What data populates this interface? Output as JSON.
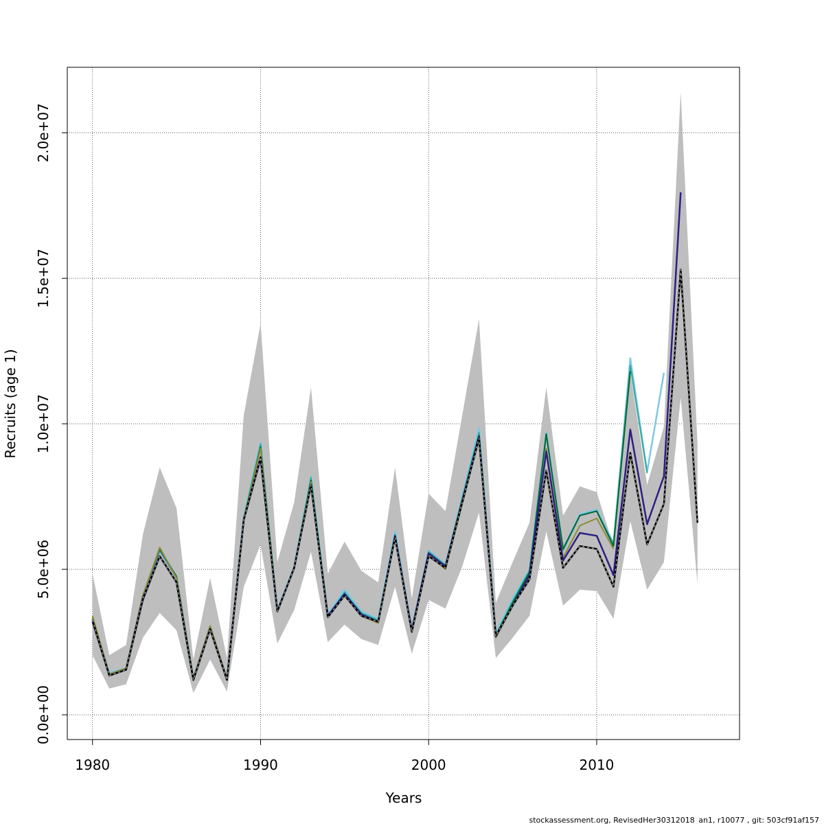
{
  "chart_data": {
    "type": "line",
    "title": "",
    "xlabel": "Years",
    "ylabel": "Recruits (age 1)",
    "xlim": [
      1978.5,
      2018.5
    ],
    "ylim": [
      -850000,
      22250000
    ],
    "grid": true,
    "xticks": [
      {
        "value": 1980,
        "label": "1980"
      },
      {
        "value": 1990,
        "label": "1990"
      },
      {
        "value": 2000,
        "label": "2000"
      },
      {
        "value": 2010,
        "label": "2010"
      }
    ],
    "yticks": [
      {
        "value": 0,
        "label": "0.0e+00"
      },
      {
        "value": 5000000,
        "label": "5.0e+06"
      },
      {
        "value": 10000000,
        "label": "1.0e+07"
      },
      {
        "value": 15000000,
        "label": "1.5e+07"
      },
      {
        "value": 20000000,
        "label": "2.0e+07"
      }
    ],
    "band": {
      "color": "#bebebe",
      "x": [
        1980,
        1981,
        1982,
        1983,
        1984,
        1985,
        1986,
        1987,
        1988,
        1989,
        1990,
        1991,
        1992,
        1993,
        1994,
        1995,
        1996,
        1997,
        1998,
        1999,
        2000,
        2001,
        2002,
        2003,
        2004,
        2005,
        2006,
        2007,
        2008,
        2009,
        2010,
        2011,
        2012,
        2013,
        2014,
        2015,
        2016
      ],
      "lower": [
        2050000,
        900000,
        1050000,
        2650000,
        3500000,
        2900000,
        750000,
        1900000,
        800000,
        4400000,
        5850000,
        2450000,
        3600000,
        5600000,
        2500000,
        3100000,
        2600000,
        2400000,
        4400000,
        2100000,
        3950000,
        3650000,
        5100000,
        6950000,
        1950000,
        2650000,
        3400000,
        6300000,
        3750000,
        4300000,
        4250000,
        3300000,
        6650000,
        4300000,
        5250000,
        10900000,
        4500000
      ],
      "upper": [
        4850000,
        2050000,
        2400000,
        6200000,
        8500000,
        7100000,
        1900000,
        4700000,
        1950000,
        10300000,
        13450000,
        5250000,
        7300000,
        11250000,
        4850000,
        5950000,
        4950000,
        4550000,
        8500000,
        4000000,
        7600000,
        7000000,
        10300000,
        13600000,
        3850000,
        5250000,
        6600000,
        11250000,
        6850000,
        7850000,
        7650000,
        5800000,
        11800000,
        7900000,
        9900000,
        21400000,
        9300000
      ]
    },
    "series": [
      {
        "color": "#2171b5",
        "width": 2,
        "x": [
          1980,
          1981,
          1982,
          1983,
          1984,
          1985,
          1986,
          1987,
          1988,
          1989,
          1990,
          1991,
          1992,
          1993,
          1994,
          1995,
          1996,
          1997,
          1998,
          1999,
          2000,
          2001,
          2002,
          2003,
          2004,
          2005,
          2006,
          2007,
          2008,
          2009,
          2010,
          2011,
          2012
        ],
        "values": [
          3250000,
          1400000,
          1600000,
          4050000,
          5650000,
          4700000,
          1250000,
          3000000,
          1250000,
          6750000,
          9300000,
          3600000,
          5050000,
          8150000,
          3400000,
          4250000,
          3500000,
          3250000,
          6200000,
          2900000,
          5650000,
          5150000,
          7450000,
          9750000,
          2750000,
          3900000,
          5000000,
          9650000,
          5700000,
          6850000,
          7000000,
          5800000,
          12100000
        ]
      },
      {
        "color": "#7ec8e3",
        "width": 2.5,
        "x": [
          1980,
          1981,
          1982,
          1983,
          1984,
          1985,
          1986,
          1987,
          1988,
          1989,
          1990,
          1991,
          1992,
          1993,
          1994,
          1995,
          1996,
          1997,
          1998,
          1999,
          2000,
          2001,
          2002,
          2003,
          2004,
          2005,
          2006,
          2007,
          2008,
          2009,
          2010,
          2011,
          2012,
          2013,
          2014
        ],
        "values": [
          3300000,
          1450000,
          1600000,
          4100000,
          5700000,
          4750000,
          1250000,
          3050000,
          1250000,
          6800000,
          9350000,
          3600000,
          5100000,
          8200000,
          3450000,
          4300000,
          3550000,
          3300000,
          6300000,
          2950000,
          5650000,
          5150000,
          7500000,
          9850000,
          2800000,
          4000000,
          5000000,
          9700000,
          5700000,
          6900000,
          7050000,
          5900000,
          12250000,
          8350000,
          11750000
        ]
      },
      {
        "color": "#35a89a",
        "width": 2,
        "x": [
          1980,
          1981,
          1982,
          1983,
          1984,
          1985,
          1986,
          1987,
          1988,
          1989,
          1990,
          1991,
          1992,
          1993,
          1994,
          1995,
          1996,
          1997,
          1998,
          1999,
          2000,
          2001,
          2002,
          2003,
          2004,
          2005,
          2006,
          2007,
          2008,
          2009,
          2010,
          2011,
          2012,
          2013
        ],
        "values": [
          3300000,
          1400000,
          1600000,
          4100000,
          5700000,
          4700000,
          1250000,
          3000000,
          1250000,
          6750000,
          9300000,
          3600000,
          5050000,
          8150000,
          3400000,
          4200000,
          3500000,
          3250000,
          6200000,
          2900000,
          5600000,
          5150000,
          7450000,
          9700000,
          2750000,
          3900000,
          4950000,
          9650000,
          5650000,
          6850000,
          7000000,
          5850000,
          12000000,
          8300000
        ]
      },
      {
        "color": "#006837",
        "width": 2,
        "x": [
          1980,
          1981,
          1982,
          1983,
          1984,
          1985,
          1986,
          1987,
          1988,
          1989,
          1990,
          1991,
          1992,
          1993,
          1994,
          1995,
          1996,
          1997,
          1998,
          1999,
          2000,
          2001,
          2002,
          2003,
          2004,
          2005,
          2006,
          2007,
          2008,
          2009,
          2010,
          2011,
          2012
        ],
        "values": [
          3350000,
          1400000,
          1600000,
          4100000,
          5700000,
          4750000,
          1250000,
          3050000,
          1250000,
          6700000,
          9200000,
          3550000,
          5050000,
          8050000,
          3400000,
          4150000,
          3450000,
          3200000,
          6150000,
          2900000,
          5550000,
          5100000,
          7350000,
          9600000,
          2700000,
          3850000,
          4900000,
          9650000,
          5700000,
          6850000,
          7000000,
          5800000,
          11800000
        ]
      },
      {
        "color": "#8c8c3c",
        "width": 2,
        "x": [
          1980,
          1981,
          1982,
          1983,
          1984,
          1985,
          1986,
          1987,
          1988,
          1989,
          1990,
          1991,
          1992,
          1993,
          1994,
          1995,
          1996,
          1997,
          1998,
          1999,
          2000,
          2001,
          2002,
          2003,
          2004,
          2005,
          2006,
          2007,
          2008,
          2009,
          2010,
          2011
        ],
        "values": [
          3400000,
          1400000,
          1600000,
          4100000,
          5750000,
          4700000,
          1250000,
          3050000,
          1250000,
          6700000,
          9150000,
          3550000,
          5050000,
          8000000,
          3350000,
          4100000,
          3400000,
          3150000,
          6100000,
          2850000,
          5500000,
          5000000,
          7250000,
          9500000,
          2650000,
          3750000,
          4700000,
          9150000,
          5400000,
          6500000,
          6750000,
          5700000
        ]
      },
      {
        "color": "#2c1f82",
        "width": 2.5,
        "x": [
          1980,
          1981,
          1982,
          1983,
          1984,
          1985,
          1986,
          1987,
          1988,
          1989,
          1990,
          1991,
          1992,
          1993,
          1994,
          1995,
          1996,
          1997,
          1998,
          1999,
          2000,
          2001,
          2002,
          2003,
          2004,
          2005,
          2006,
          2007,
          2008,
          2009,
          2010,
          2011,
          2012,
          2013,
          2014,
          2015
        ],
        "values": [
          3200000,
          1350000,
          1550000,
          3950000,
          5450000,
          4550000,
          1200000,
          2950000,
          1200000,
          6700000,
          8800000,
          3550000,
          5050000,
          7900000,
          3400000,
          4150000,
          3450000,
          3200000,
          6150000,
          2900000,
          5550000,
          5100000,
          7350000,
          9550000,
          2700000,
          3750000,
          4800000,
          9050000,
          5300000,
          6250000,
          6150000,
          4800000,
          9800000,
          6550000,
          8200000,
          17950000
        ]
      },
      {
        "color": "#000000",
        "width": 2.5,
        "x": [
          1980,
          1981,
          1982,
          1983,
          1984,
          1985,
          1986,
          1987,
          1988,
          1989,
          1990,
          1991,
          1992,
          1993,
          1994,
          1995,
          1996,
          1997,
          1998,
          1999,
          2000,
          2001,
          2002,
          2003,
          2004,
          2005,
          2006,
          2007,
          2008,
          2009,
          2010,
          2011,
          2012,
          2013,
          2014,
          2015,
          2016
        ],
        "values": [
          3250000,
          1350000,
          1550000,
          4000000,
          5450000,
          4550000,
          1200000,
          2950000,
          1200000,
          6700000,
          8850000,
          3550000,
          5050000,
          7900000,
          3350000,
          4100000,
          3400000,
          3200000,
          6100000,
          2850000,
          5450000,
          5050000,
          7300000,
          9500000,
          2700000,
          3750000,
          4650000,
          8400000,
          5050000,
          5800000,
          5700000,
          4400000,
          9000000,
          5850000,
          7250000,
          15300000,
          6600000
        ]
      },
      {
        "color": "#9a9a9a",
        "width": 1.5,
        "dash": "3,4",
        "x": [
          1980,
          1981,
          1982,
          1983,
          1984,
          1985,
          1986,
          1987,
          1988,
          1989,
          1990,
          1991,
          1992,
          1993,
          1994,
          1995,
          1996,
          1997,
          1998,
          1999,
          2000,
          2001,
          2002,
          2003,
          2004,
          2005,
          2006,
          2007,
          2008,
          2009,
          2010,
          2011,
          2012,
          2013,
          2014,
          2015,
          2016
        ],
        "values": [
          3250000,
          1350000,
          1550000,
          4000000,
          5450000,
          4550000,
          1200000,
          2950000,
          1200000,
          6700000,
          8850000,
          3550000,
          5050000,
          7900000,
          3350000,
          4100000,
          3400000,
          3200000,
          6100000,
          2850000,
          5450000,
          5050000,
          7300000,
          9500000,
          2700000,
          3750000,
          4650000,
          8400000,
          5050000,
          5800000,
          5700000,
          4400000,
          9000000,
          5850000,
          7250000,
          15300000,
          6600000
        ]
      }
    ]
  },
  "footer": {
    "text": "stockassessment.org, RevisedHer30312018_an1, r10077 , git: 503cf91af157"
  }
}
